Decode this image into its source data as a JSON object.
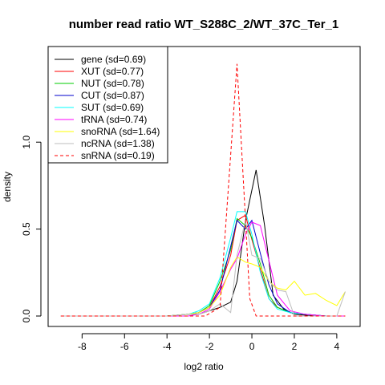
{
  "chart_data": {
    "type": "line",
    "title": "number read ratio WT_S288C_2/WT_37C_Ter_1",
    "xlabel": "log2 ratio",
    "ylabel": "density",
    "xlim": [
      -9.6,
      5.1
    ],
    "ylim": [
      -0.06,
      1.55
    ],
    "x_ticks": [
      -8,
      -6,
      -4,
      -2,
      0,
      2,
      4
    ],
    "x_tick_labels": [
      "-8",
      "-6",
      "-4",
      "-2",
      "0",
      "2",
      "4"
    ],
    "y_ticks": [
      0.0,
      0.5,
      1.0
    ],
    "y_tick_labels": [
      "0.0",
      "0.5",
      "1.0"
    ],
    "grid": false,
    "legend_position": "top-left",
    "series": [
      {
        "name": "gene (sd=0.69)",
        "color": "#000000",
        "dash": "solid",
        "x": [
          -9,
          -4,
          -3,
          -2.5,
          -2,
          -1.5,
          -1,
          -0.7,
          -0.3,
          0.2,
          0.6,
          1,
          1.5,
          2,
          3,
          4.4
        ],
        "y": [
          0,
          0,
          0.01,
          0.01,
          0.03,
          0.05,
          0.08,
          0.2,
          0.55,
          0.84,
          0.52,
          0.12,
          0.04,
          0.01,
          0,
          0
        ]
      },
      {
        "name": "XUT (sd=0.77)",
        "color": "#ff0000",
        "dash": "solid",
        "x": [
          -9,
          -4,
          -3,
          -2.5,
          -2,
          -1.5,
          -1,
          -0.7,
          -0.3,
          0,
          0.4,
          0.8,
          1.2,
          1.8,
          2.5,
          3.5,
          4.4
        ],
        "y": [
          0,
          0,
          0.01,
          0.02,
          0.05,
          0.17,
          0.35,
          0.55,
          0.58,
          0.44,
          0.27,
          0.1,
          0.05,
          0.02,
          0.01,
          0,
          0
        ]
      },
      {
        "name": "NUT (sd=0.78)",
        "color": "#00cc00",
        "dash": "solid",
        "x": [
          -9,
          -4,
          -3,
          -2.5,
          -2,
          -1.5,
          -1,
          -0.7,
          -0.3,
          0,
          0.4,
          0.8,
          1.2,
          1.8,
          2.5,
          3.5,
          4.4
        ],
        "y": [
          0,
          0,
          0.01,
          0.02,
          0.06,
          0.2,
          0.38,
          0.56,
          0.52,
          0.45,
          0.3,
          0.12,
          0.05,
          0.02,
          0.01,
          0,
          0
        ]
      },
      {
        "name": "CUT (sd=0.87)",
        "color": "#0000cc",
        "dash": "solid",
        "x": [
          -9,
          -4,
          -3,
          -2.5,
          -2,
          -1.5,
          -1,
          -0.7,
          -0.3,
          0,
          0.4,
          0.8,
          1.2,
          1.8,
          2.5,
          3.5,
          4.4
        ],
        "y": [
          0,
          0,
          0.01,
          0.02,
          0.05,
          0.15,
          0.4,
          0.55,
          0.5,
          0.55,
          0.36,
          0.18,
          0.07,
          0.02,
          0.01,
          0,
          0
        ]
      },
      {
        "name": "SUT (sd=0.69)",
        "color": "#00ffff",
        "dash": "solid",
        "x": [
          -9,
          -4,
          -3,
          -2.5,
          -2,
          -1.5,
          -1,
          -0.7,
          -0.3,
          0,
          0.4,
          0.8,
          1.2,
          1.8,
          2.5,
          3.5,
          4.4
        ],
        "y": [
          0,
          0,
          0.01,
          0.03,
          0.07,
          0.22,
          0.45,
          0.6,
          0.6,
          0.47,
          0.25,
          0.1,
          0.04,
          0.02,
          0.01,
          0,
          0
        ]
      },
      {
        "name": "tRNA (sd=0.74)",
        "color": "#ff00ff",
        "dash": "solid",
        "x": [
          -9,
          -4,
          -3,
          -2.5,
          -2,
          -1.5,
          -1,
          -0.7,
          -0.3,
          0,
          0.4,
          0.8,
          1.2,
          1.8,
          2.5,
          3.5,
          4.4
        ],
        "y": [
          0,
          0,
          0,
          0.01,
          0.04,
          0.14,
          0.27,
          0.33,
          0.47,
          0.54,
          0.52,
          0.32,
          0.12,
          0.03,
          0.01,
          0,
          0
        ]
      },
      {
        "name": "snoRNA (sd=1.64)",
        "color": "#ffff00",
        "dash": "solid",
        "x": [
          -9,
          -4,
          -3,
          -2.5,
          -2,
          -1.5,
          -1,
          -0.7,
          -0.3,
          0,
          0.4,
          0.8,
          1.2,
          1.6,
          2,
          2.5,
          3,
          3.5,
          4,
          4.4
        ],
        "y": [
          0,
          0,
          0.01,
          0.02,
          0.05,
          0.12,
          0.28,
          0.34,
          0.31,
          0.3,
          0.28,
          0.2,
          0.16,
          0.15,
          0.2,
          0.12,
          0.13,
          0.09,
          0.06,
          0.14
        ]
      },
      {
        "name": "ncRNA (sd=1.38)",
        "color": "#bebebe",
        "dash": "solid",
        "x": [
          -9,
          -4,
          -3,
          -2.5,
          -2,
          -1.5,
          -1,
          -0.7,
          -0.3,
          0,
          0.4,
          0.8,
          1.2,
          1.6,
          2,
          2.5,
          3,
          3.5,
          4,
          4.4
        ],
        "y": [
          0,
          0,
          0.01,
          0.01,
          0.03,
          0.07,
          0.02,
          0.35,
          0.55,
          0.35,
          0.33,
          0.2,
          0.15,
          0.14,
          0,
          0,
          0,
          0,
          0,
          0.14
        ]
      },
      {
        "name": "snRNA (sd=0.19)",
        "color": "#ff0000",
        "dash": "dashed",
        "x": [
          -9,
          -2.2,
          -1.5,
          -0.7,
          -0.1,
          0.2,
          4.4
        ],
        "y": [
          0,
          0,
          0.05,
          1.45,
          0.1,
          0,
          0
        ]
      }
    ]
  }
}
